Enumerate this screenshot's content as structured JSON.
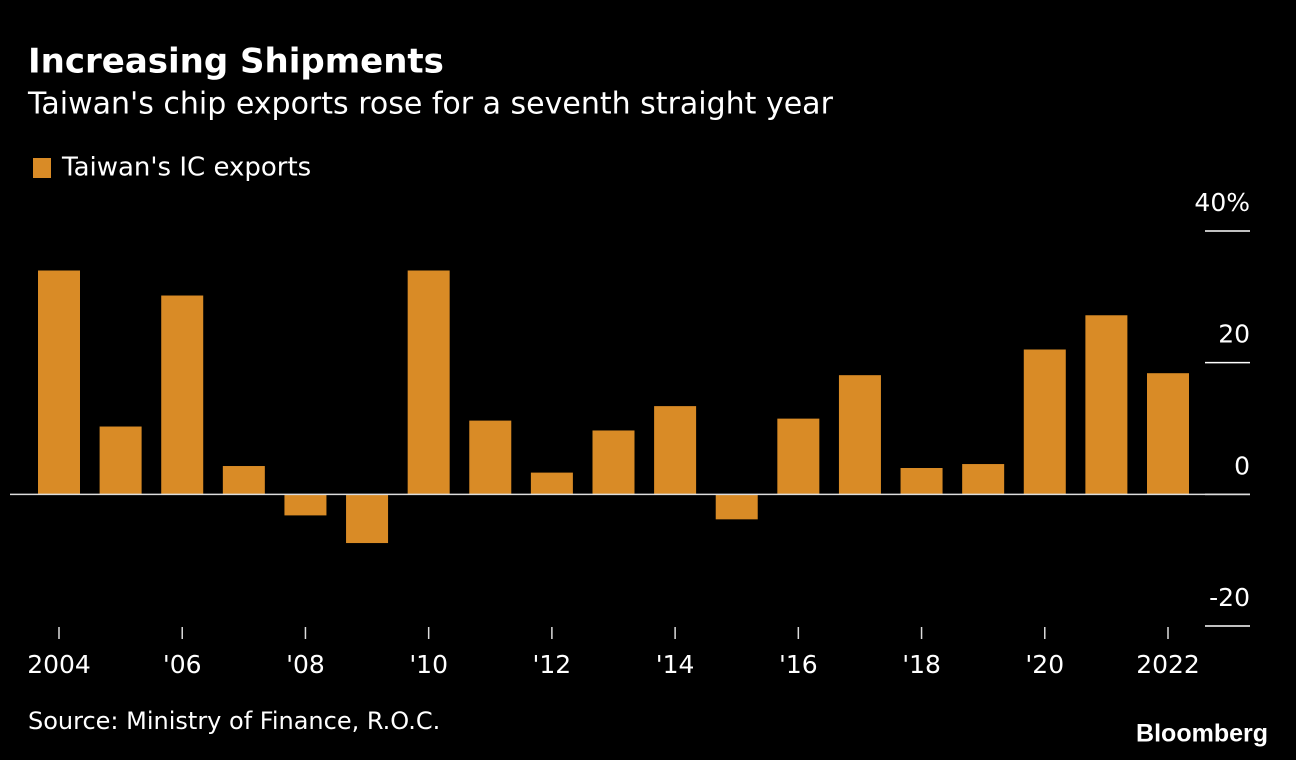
{
  "chart_data": {
    "type": "bar",
    "title": "Increasing Shipments",
    "subtitle": "Taiwan's chip exports rose for a seventh straight year",
    "source": "Source: Ministry of Finance, R.O.C.",
    "logo": "Bloomberg",
    "categories": [
      "2004",
      null,
      "'06",
      null,
      "'08",
      null,
      "'10",
      null,
      "'12",
      null,
      "'14",
      null,
      "'16",
      null,
      "'18",
      null,
      "'20",
      null,
      "2022"
    ],
    "series": [
      {
        "name": "Taiwan's IC exports",
        "color": "#d98b26",
        "values": [
          34.0,
          10.3,
          30.2,
          4.3,
          -3.2,
          -7.4,
          34.0,
          11.2,
          3.3,
          9.7,
          13.4,
          -3.8,
          11.5,
          18.1,
          4.0,
          4.6,
          22.0,
          27.2,
          18.4
        ]
      }
    ],
    "ylim": [
      -20,
      40
    ],
    "yticks": [
      {
        "value": 40,
        "label": "40%"
      },
      20,
      0,
      -20
    ]
  }
}
